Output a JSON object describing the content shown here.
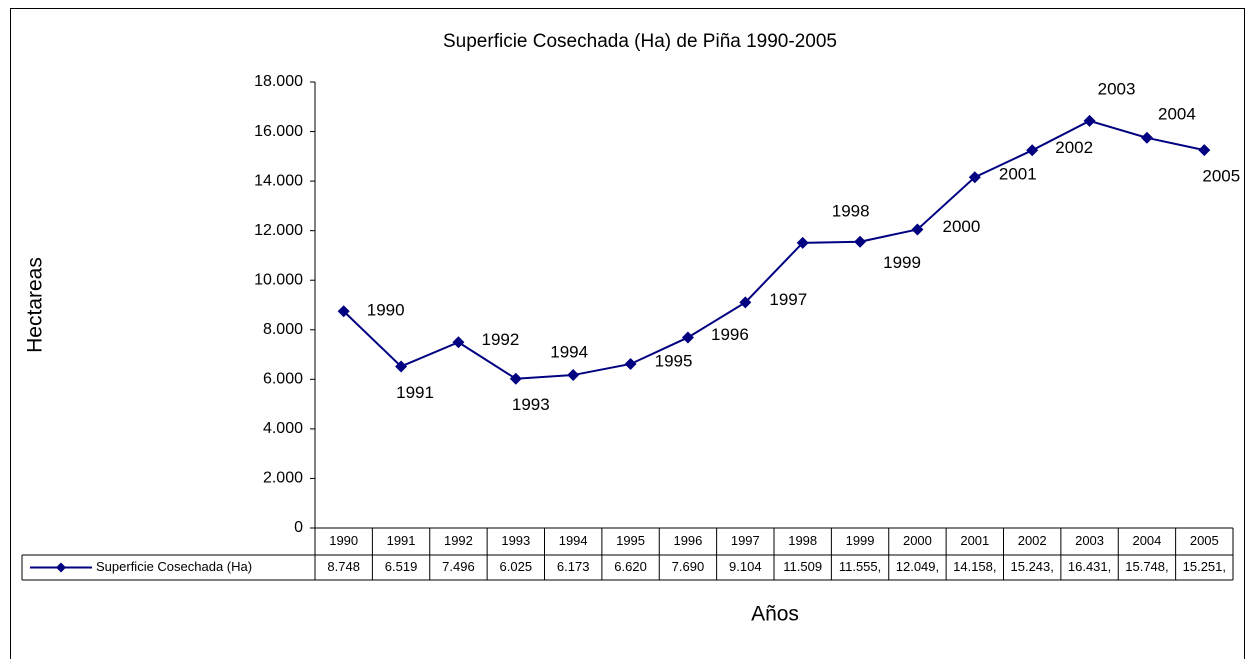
{
  "chart_data": {
    "type": "line",
    "title": "Superficie Cosechada (Ha) de Piña 1990-2005",
    "y_label": "Hectareas",
    "x_label": "Años",
    "categories": [
      "1990",
      "1991",
      "1992",
      "1993",
      "1994",
      "1995",
      "1996",
      "1997",
      "1998",
      "1999",
      "2000",
      "2001",
      "2002",
      "2003",
      "2004",
      "2005"
    ],
    "series": [
      {
        "name": "Superficie Cosechada (Ha)",
        "color": "#000080",
        "values": [
          8748,
          6519,
          7496,
          6025,
          6173,
          6620,
          7690,
          9104,
          11509,
          11555,
          12049,
          14158,
          15243,
          16431,
          15748,
          15251
        ],
        "value_labels": [
          "8.748",
          "6.519",
          "7.496",
          "6.025",
          "6.173",
          "6.620",
          "7.690",
          "9.104",
          "11.509",
          "11.555,",
          "12.049,",
          "14.158,",
          "15.243,",
          "16.431,",
          "15.748,",
          "15.251,"
        ]
      }
    ],
    "ylim": [
      0,
      18000
    ],
    "yticks": [
      0,
      {
        "value": 2000,
        "label": "2.000"
      },
      {
        "value": 4000,
        "label": "4.000"
      },
      {
        "value": 6000,
        "label": "6.000"
      },
      {
        "value": 8000,
        "label": "8.000"
      },
      {
        "value": 10000,
        "label": "10.000"
      },
      {
        "value": 12000,
        "label": "12.000"
      },
      {
        "value": 14000,
        "label": "14.000"
      },
      {
        "value": 16000,
        "label": "16.000"
      },
      {
        "value": 18000,
        "label": "18.000"
      }
    ],
    "grid": false
  }
}
